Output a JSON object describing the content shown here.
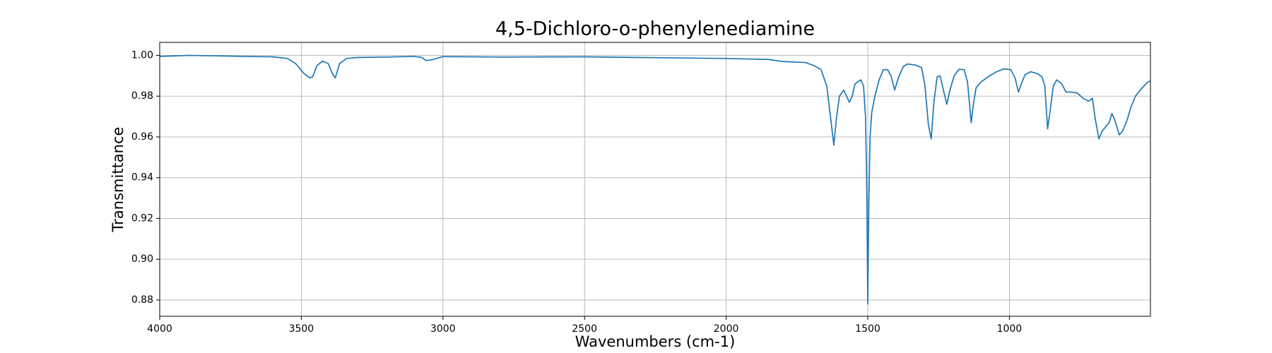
{
  "chart_data": {
    "type": "line",
    "title": "4,5-Dichloro-o-phenylenediamine",
    "x_label": "Wavenumbers (cm-1)",
    "y_label": "Transmittance",
    "color": "#1f77b4",
    "grid": true,
    "xlim": [
      4000,
      502
    ],
    "ylim": [
      0.872,
      1.0064
    ],
    "xticks": [
      4000,
      3500,
      3000,
      2500,
      2000,
      1500,
      1000
    ],
    "yticks": [
      {
        "value": 0.88,
        "label": "0.88"
      },
      {
        "value": 0.9,
        "label": "0.90"
      },
      {
        "value": 0.92,
        "label": "0.92"
      },
      {
        "value": 0.94,
        "label": "0.94"
      },
      {
        "value": 0.96,
        "label": "0.96"
      },
      {
        "value": 0.98,
        "label": "0.98"
      },
      {
        "value": 1.0,
        "label": "1.00"
      }
    ],
    "x": [
      4000,
      3900,
      3800,
      3700,
      3600,
      3550,
      3520,
      3490,
      3470,
      3460,
      3445,
      3425,
      3405,
      3390,
      3380,
      3365,
      3340,
      3300,
      3200,
      3100,
      3075,
      3060,
      3040,
      3000,
      2800,
      2500,
      2200,
      2000,
      1850,
      1800,
      1720,
      1690,
      1665,
      1645,
      1630,
      1620,
      1610,
      1600,
      1585,
      1575,
      1565,
      1555,
      1545,
      1525,
      1515,
      1508,
      1504,
      1500,
      1496,
      1492,
      1486,
      1475,
      1460,
      1445,
      1430,
      1418,
      1405,
      1392,
      1375,
      1360,
      1330,
      1310,
      1298,
      1286,
      1276,
      1266,
      1255,
      1245,
      1233,
      1221,
      1210,
      1195,
      1178,
      1160,
      1148,
      1140,
      1135,
      1128,
      1118,
      1100,
      1070,
      1045,
      1020,
      995,
      980,
      968,
      958,
      945,
      925,
      900,
      885,
      875,
      865,
      857,
      845,
      833,
      815,
      800,
      780,
      760,
      740,
      720,
      707,
      697,
      684,
      672,
      660,
      648,
      638,
      627,
      612,
      600,
      585,
      570,
      555,
      535,
      515,
      502
    ],
    "values": [
      0.9995,
      1.0,
      0.9998,
      0.9995,
      0.9993,
      0.9985,
      0.996,
      0.991,
      0.989,
      0.9895,
      0.995,
      0.9972,
      0.996,
      0.991,
      0.989,
      0.996,
      0.9985,
      0.999,
      0.9992,
      0.9995,
      0.999,
      0.9975,
      0.9978,
      0.9994,
      0.9992,
      0.9993,
      0.9988,
      0.9985,
      0.998,
      0.997,
      0.9965,
      0.995,
      0.993,
      0.985,
      0.968,
      0.956,
      0.97,
      0.98,
      0.983,
      0.98,
      0.977,
      0.98,
      0.986,
      0.988,
      0.985,
      0.97,
      0.94,
      0.878,
      0.93,
      0.96,
      0.972,
      0.98,
      0.988,
      0.993,
      0.993,
      0.99,
      0.983,
      0.989,
      0.9945,
      0.9958,
      0.9952,
      0.994,
      0.985,
      0.966,
      0.959,
      0.978,
      0.9895,
      0.99,
      0.983,
      0.976,
      0.983,
      0.99,
      0.9932,
      0.993,
      0.987,
      0.975,
      0.967,
      0.975,
      0.984,
      0.987,
      0.99,
      0.992,
      0.9934,
      0.993,
      0.989,
      0.982,
      0.986,
      0.9905,
      0.992,
      0.991,
      0.9895,
      0.985,
      0.964,
      0.972,
      0.985,
      0.988,
      0.986,
      0.982,
      0.982,
      0.9815,
      0.979,
      0.9775,
      0.979,
      0.969,
      0.959,
      0.963,
      0.965,
      0.967,
      0.9715,
      0.968,
      0.961,
      0.963,
      0.968,
      0.975,
      0.98,
      0.9835,
      0.9865,
      0.9875
    ]
  }
}
